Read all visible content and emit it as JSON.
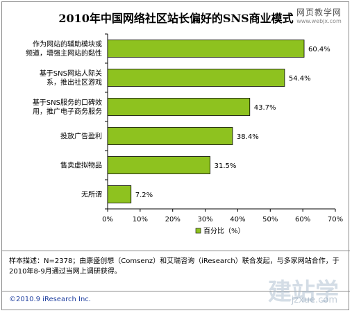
{
  "header": {
    "title": "2010年中国网络社区站长偏好的SNS商业模式",
    "watermark_line1": "网页教学网",
    "watermark_line2": "www.webjx.com"
  },
  "chart_data": {
    "type": "bar",
    "orientation": "horizontal",
    "title": "2010年中国网络社区站长偏好的SNS商业模式",
    "categories": [
      [
        "作为网站的辅助模块或",
        "频道，增强主网站的黏性"
      ],
      [
        "基于SNS网站人际关",
        "系，推出社区游戏"
      ],
      [
        "基于SNS服务的口碑效",
        "用，推广电子商务服务"
      ],
      [
        "投放广告盈利"
      ],
      [
        "售卖虚拟物品"
      ],
      [
        "无所谓"
      ]
    ],
    "series": [
      {
        "name": "百分比（%）",
        "values": [
          60.4,
          54.4,
          43.7,
          38.4,
          31.5,
          7.2
        ],
        "color": "#8ec21f"
      }
    ],
    "value_labels": [
      "60.4%",
      "54.4%",
      "43.7%",
      "38.4%",
      "31.5%",
      "7.2%"
    ],
    "xlim": [
      0,
      70
    ],
    "xticks": [
      "0%",
      "10%",
      "20%",
      "30%",
      "40%",
      "50%",
      "60%",
      "70%"
    ],
    "grid": false,
    "legend_position": "bottom-center"
  },
  "footer": {
    "note": "样本描述：N=2378；由康盛创想（Comsenz）和艾瑞咨询（iResearch）联合发起，与多家网站合作，于2010年8-9月通过当网上调研获得。",
    "copyright": "©2010.9 iResearch Inc.",
    "watermark_brand": "建站学",
    "watermark_url": "jzxue.com"
  }
}
